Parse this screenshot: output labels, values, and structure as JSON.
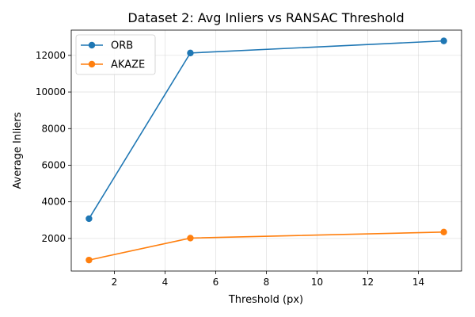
{
  "chart_data": {
    "type": "line",
    "title": "Dataset 2: Avg Inliers vs RANSAC Threshold",
    "xlabel": "Threshold (px)",
    "ylabel": "Average Inliers",
    "x": [
      1,
      5,
      15
    ],
    "xlim": [
      0.3,
      15.7
    ],
    "ylim": [
      220,
      13380
    ],
    "xticks": [
      2,
      4,
      6,
      8,
      10,
      12,
      14
    ],
    "yticks": [
      2000,
      4000,
      6000,
      8000,
      10000,
      12000
    ],
    "grid": true,
    "legend_position": "top-left",
    "series": [
      {
        "name": "ORB",
        "values": [
          3080,
          12130,
          12790
        ],
        "color": "#1f77b4"
      },
      {
        "name": "AKAZE",
        "values": [
          820,
          2020,
          2350
        ],
        "color": "#ff7f0e"
      }
    ]
  }
}
